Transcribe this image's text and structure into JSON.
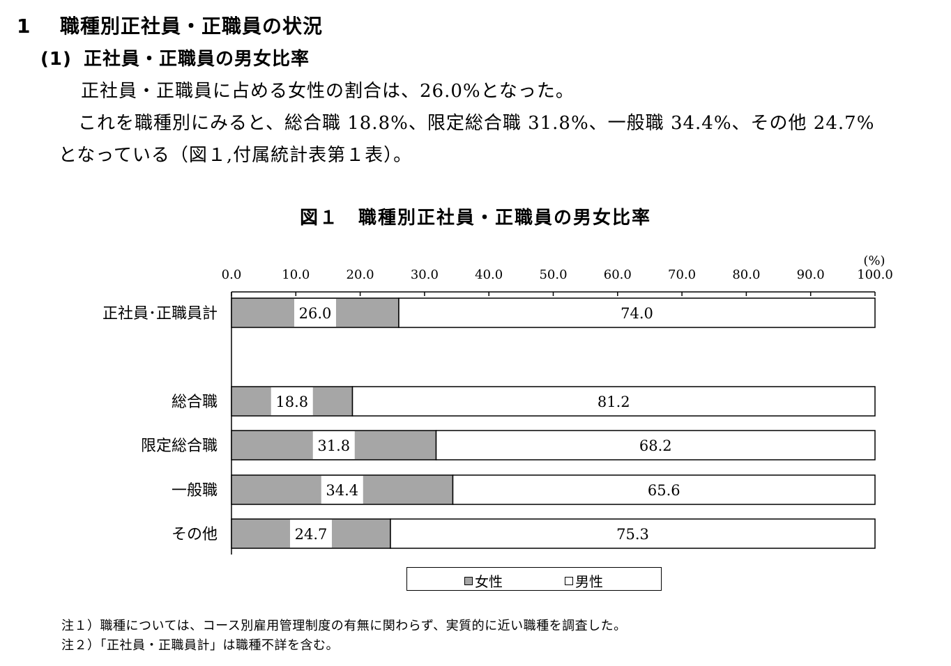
{
  "heading": {
    "number": "1",
    "title": "職種別正社員・正職員の状況"
  },
  "subheading": {
    "number": "(1)",
    "title": "正社員・正職員の男女比率"
  },
  "paragraph": {
    "line1": "正社員・正職員に占める女性の割合は、26.0%となった。",
    "line2": "これを職種別にみると、総合職 18.8%、限定総合職 31.8%、一般職 34.4%、その他 24.7%",
    "line3": "となっている（図１,付属統計表第１表）。"
  },
  "figure_title": "図１　職種別正社員・正職員の男女比率",
  "chart_data": {
    "type": "bar",
    "orientation": "horizontal",
    "stacked": true,
    "unit_label": "(%)",
    "xlim": [
      0,
      100
    ],
    "x_ticks": [
      "0.0",
      "10.0",
      "20.0",
      "30.0",
      "40.0",
      "50.0",
      "60.0",
      "70.0",
      "80.0",
      "90.0",
      "100.0"
    ],
    "categories": [
      "正社員･正職員計",
      "総合職",
      "限定総合職",
      "一般職",
      "その他"
    ],
    "series": [
      {
        "name": "女性",
        "values": [
          26.0,
          18.8,
          31.8,
          34.4,
          24.7
        ],
        "labels": [
          "26.0",
          "18.8",
          "31.8",
          "34.4",
          "24.7"
        ],
        "color": "#a6a6a6"
      },
      {
        "name": "男性",
        "values": [
          74.0,
          81.2,
          68.2,
          65.6,
          75.3
        ],
        "labels": [
          "74.0",
          "81.2",
          "68.2",
          "65.6",
          "75.3"
        ],
        "color": "#ffffff"
      }
    ],
    "legend_position": "bottom"
  },
  "legend": {
    "female": "女性",
    "male": "男性"
  },
  "notes": [
    "注１）職種については、コース別雇用管理制度の有無に関わらず、実質的に近い職種を調査した。",
    "注２）「正社員・正職員計」は職種不詳を含む。"
  ]
}
